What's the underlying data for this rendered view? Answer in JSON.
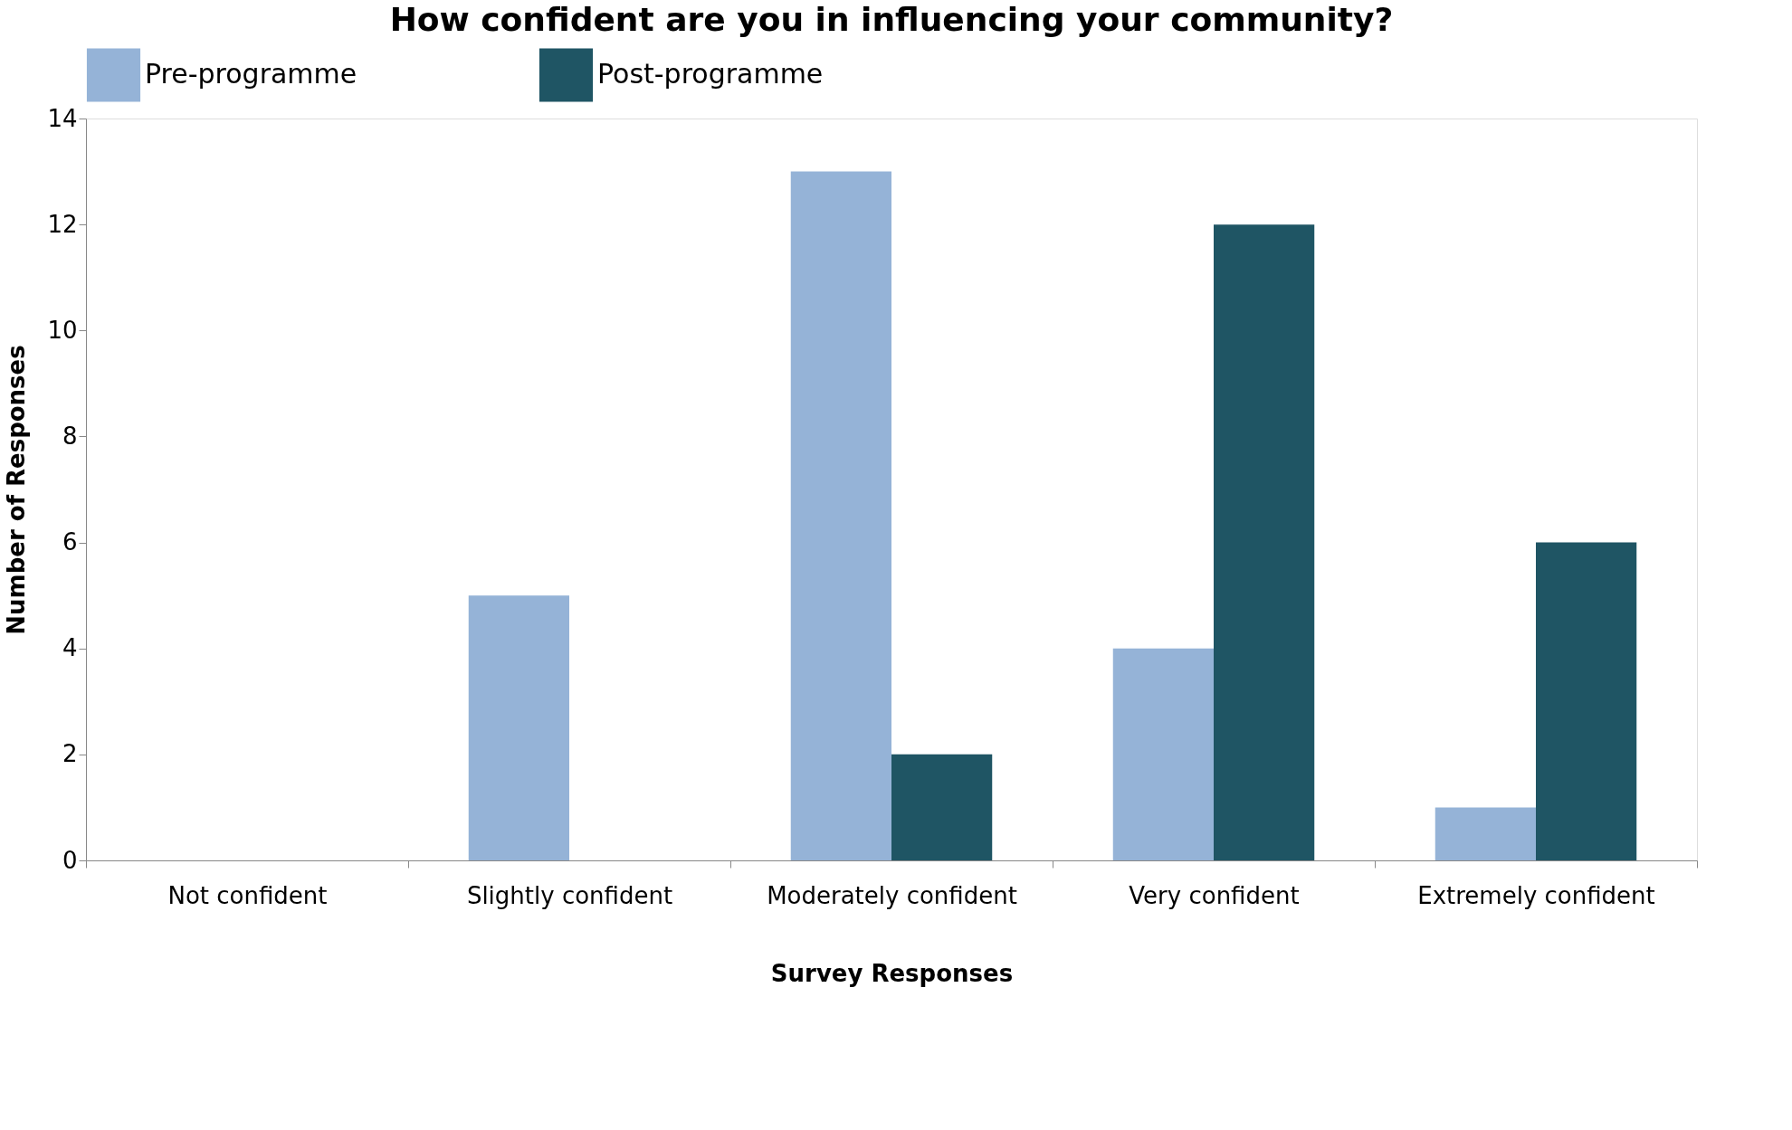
{
  "chart_data": {
    "type": "bar",
    "title": "How confident are you in influencing your community?",
    "xlabel": "Survey Responses",
    "ylabel": "Number of Responses",
    "categories": [
      "Not confident",
      "Slightly confident",
      "Moderately confident",
      "Very confident",
      "Extremely confident"
    ],
    "series": [
      {
        "name": "Pre-programme",
        "color": "#95b3d7",
        "values": [
          0,
          5,
          13,
          4,
          1
        ]
      },
      {
        "name": "Post-programme",
        "color": "#1f5564",
        "values": [
          0,
          0,
          2,
          12,
          6
        ]
      }
    ],
    "ylim": [
      0,
      14
    ],
    "yticks": [
      0,
      2,
      4,
      6,
      8,
      10,
      12,
      14
    ],
    "grid": false,
    "legend": "top"
  }
}
